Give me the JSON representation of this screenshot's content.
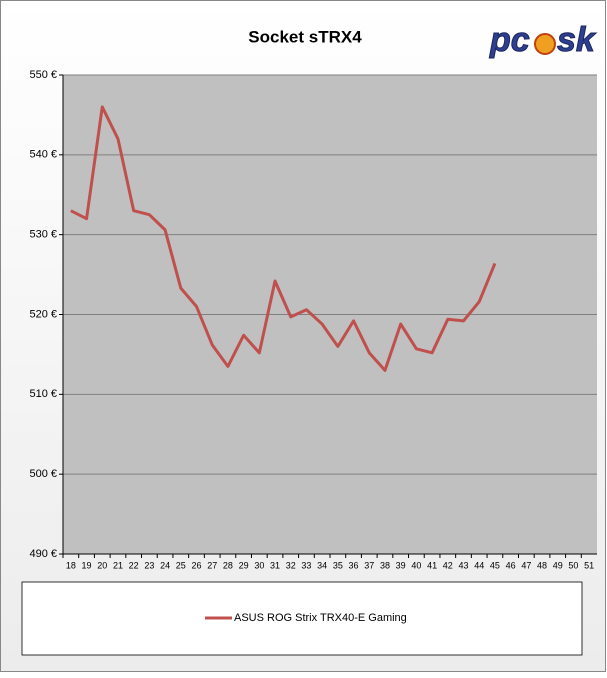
{
  "chart_data": {
    "type": "line",
    "title": "Socket sTRX4",
    "logo": [
      "pc",
      "sk"
    ],
    "categories": [
      "18",
      "19",
      "20",
      "21",
      "22",
      "23",
      "24",
      "25",
      "26",
      "27",
      "28",
      "29",
      "30",
      "31",
      "32",
      "33",
      "34",
      "35",
      "36",
      "37",
      "38",
      "39",
      "40",
      "41",
      "42",
      "43",
      "44",
      "45",
      "46",
      "47",
      "48",
      "49",
      "50",
      "51"
    ],
    "series": [
      {
        "name": "ASUS ROG Strix TRX40-E Gaming",
        "color": "#c0504d",
        "values": [
          533,
          532,
          546,
          542,
          533,
          532.5,
          530.6,
          523.3,
          521,
          516.2,
          513.5,
          517.4,
          515.2,
          524.2,
          519.7,
          520.6,
          518.8,
          516,
          519.2,
          515.2,
          513,
          518.8,
          515.7,
          515.2,
          519.4,
          519.2,
          521.6,
          526.4,
          null,
          null,
          null,
          null,
          null,
          null
        ]
      }
    ],
    "ylim": [
      490,
      550
    ],
    "yticks": [
      {
        "value": 490,
        "label": "490 €"
      },
      {
        "value": 500,
        "label": "500 €"
      },
      {
        "value": 510,
        "label": "510 €"
      },
      {
        "value": 520,
        "label": "520 €"
      },
      {
        "value": 530,
        "label": "530 €"
      },
      {
        "value": 540,
        "label": "540 €"
      },
      {
        "value": 550,
        "label": "550 €"
      }
    ],
    "grid": true
  }
}
